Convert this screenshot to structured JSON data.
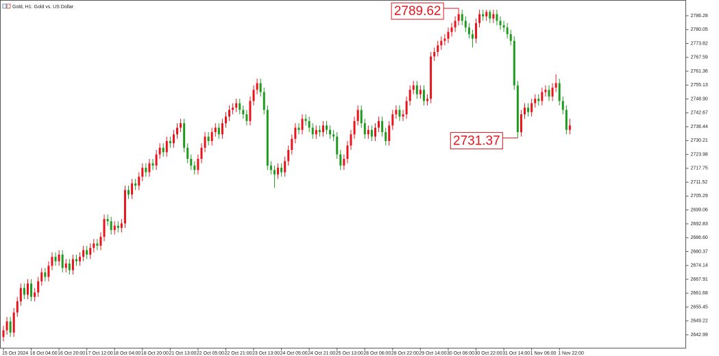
{
  "chart_data": {
    "type": "candlestick",
    "title": "Gold, H1:  Gold vs. US Dollar",
    "up_color": "#e8141c",
    "down_color": "#1f9a1f",
    "ylim": [
      2637.15,
      2793.35
    ],
    "yticks": [
      2642.99,
      2649.22,
      2655.45,
      2661.68,
      2667.91,
      2674.14,
      2680.37,
      {
        "value": 2686.6,
        "label": "2686.60"
      },
      2692.83,
      2699.06,
      2705.29,
      2711.52,
      2717.75,
      2723.98,
      2730.21,
      2736.44,
      2742.67,
      {
        "value": 2748.9,
        "label": "2748.90"
      },
      2755.13,
      2761.36,
      2767.59,
      2773.82,
      2780.05,
      2786.28
    ],
    "xticks": [
      {
        "value": 0,
        "label": "15 Oct 2024"
      },
      {
        "value": 8,
        "label": "16 Oct 04:00"
      },
      {
        "value": 16,
        "label": "16 Oct 20:00"
      },
      {
        "value": 24,
        "label": "17 Oct 12:00"
      },
      {
        "value": 32,
        "label": "18 Oct 04:00"
      },
      {
        "value": 40,
        "label": "18 Oct 20:00"
      },
      {
        "value": 48,
        "label": "21 Oct 13:00"
      },
      {
        "value": 56,
        "label": "22 Oct 05:00"
      },
      {
        "value": 64,
        "label": "22 Oct 21:00"
      },
      {
        "value": 72,
        "label": "23 Oct 13:00"
      },
      {
        "value": 80,
        "label": "24 Oct 05:00"
      },
      {
        "value": 88,
        "label": "24 Oct 21:00"
      },
      {
        "value": 96,
        "label": "25 Oct 13:00"
      },
      {
        "value": 104,
        "label": "28 Oct 06:00"
      },
      {
        "value": 112,
        "label": "28 Oct 22:00"
      },
      {
        "value": 120,
        "label": "29 Oct 14:00"
      },
      {
        "value": 128,
        "label": "30 Oct 06:00"
      },
      {
        "value": 136,
        "label": "30 Oct 22:00"
      },
      {
        "value": 144,
        "label": "31 Oct 14:00"
      },
      {
        "value": 152,
        "label": "1 Nov 06:00"
      },
      {
        "value": 160,
        "label": "1 Nov 22:00"
      }
    ],
    "open": [
      2642,
      2645,
      2649,
      2644,
      2653,
      2658,
      2664,
      2661,
      2666,
      2660,
      2662,
      2667,
      2671,
      2669,
      2674,
      2678,
      2676,
      2679,
      2673,
      2675,
      2672,
      2677,
      2676,
      2678,
      2681,
      2679,
      2682,
      2684,
      2683,
      2687,
      2695,
      2694,
      2690,
      2692,
      2691,
      2693,
      2708,
      2706,
      2711,
      2710,
      2714,
      2718,
      2716,
      2720,
      2719,
      2724,
      2727,
      2725,
      2730,
      2729,
      2733,
      2736,
      2738,
      2727,
      2722,
      2719,
      2717,
      2722,
      2727,
      2732,
      2730,
      2734,
      2736,
      2733,
      2738,
      2741,
      2744,
      2745,
      2747,
      2744,
      2742,
      2739,
      2748,
      2753,
      2756,
      2752,
      2744,
      2719,
      2717,
      2715,
      2718,
      2716,
      2721,
      2726,
      2731,
      2736,
      2735,
      2740,
      2739,
      2736,
      2733,
      2735,
      2734,
      2737,
      2735,
      2733,
      2732,
      2724,
      2719,
      2722,
      2728,
      2733,
      2739,
      2744,
      2738,
      2733,
      2735,
      2732,
      2736,
      2739,
      2734,
      2730,
      2737,
      2742,
      2744,
      2741,
      2742,
      2748,
      2753,
      2755,
      2751,
      2753,
      2748,
      2749,
      2768,
      2770,
      2773,
      2775,
      2776,
      2779,
      2781,
      2784,
      2787,
      2784,
      2781,
      2778,
      2776,
      2783,
      2787,
      2786,
      2788,
      2785,
      2787,
      2784,
      2782,
      2781,
      2778,
      2775,
      2755,
      2734,
      2742,
      2745,
      2743,
      2747,
      2749,
      2748,
      2752,
      2753,
      2750,
      2754,
      2756,
      2748,
      2744,
      2735
    ],
    "high": [
      2647,
      2651,
      2651,
      2655,
      2660,
      2666,
      2666,
      2668,
      2668,
      2664,
      2669,
      2673,
      2673,
      2676,
      2680,
      2680,
      2681,
      2681,
      2677,
      2677,
      2679,
      2679,
      2680,
      2683,
      2683,
      2684,
      2686,
      2686,
      2689,
      2697,
      2697,
      2696,
      2694,
      2694,
      2695,
      2710,
      2710,
      2713,
      2713,
      2716,
      2720,
      2720,
      2722,
      2722,
      2726,
      2729,
      2729,
      2732,
      2732,
      2735,
      2738,
      2740,
      2740,
      2729,
      2724,
      2721,
      2724,
      2729,
      2734,
      2734,
      2736,
      2738,
      2738,
      2740,
      2743,
      2746,
      2747,
      2749,
      2749,
      2746,
      2744,
      2750,
      2755,
      2758,
      2758,
      2754,
      2746,
      2721,
      2719,
      2720,
      2720,
      2723,
      2728,
      2733,
      2738,
      2738,
      2742,
      2742,
      2741,
      2738,
      2737,
      2737,
      2739,
      2739,
      2737,
      2735,
      2734,
      2726,
      2724,
      2730,
      2735,
      2741,
      2746,
      2746,
      2740,
      2737,
      2737,
      2738,
      2741,
      2741,
      2736,
      2739,
      2744,
      2746,
      2746,
      2744,
      2750,
      2755,
      2757,
      2757,
      2755,
      2755,
      2751,
      2770,
      2772,
      2775,
      2777,
      2778,
      2781,
      2783,
      2786,
      2789.62,
      2789,
      2786,
      2783,
      2780,
      2785,
      2789,
      2789,
      2789,
      2789,
      2789,
      2789,
      2786,
      2784,
      2783,
      2780,
      2777,
      2757,
      2744,
      2747,
      2747,
      2749,
      2751,
      2751,
      2754,
      2755,
      2755,
      2756,
      2760,
      2758,
      2750,
      2746,
      2740
    ],
    "low": [
      2640,
      2643,
      2642,
      2642,
      2651,
      2656,
      2659,
      2659,
      2658,
      2658,
      2660,
      2665,
      2667,
      2667,
      2672,
      2674,
      2674,
      2671,
      2671,
      2670,
      2670,
      2674,
      2674,
      2676,
      2677,
      2677,
      2680,
      2681,
      2681,
      2685,
      2692,
      2688,
      2688,
      2689,
      2689,
      2691,
      2704,
      2704,
      2708,
      2708,
      2712,
      2714,
      2714,
      2717,
      2717,
      2722,
      2723,
      2723,
      2727,
      2727,
      2731,
      2734,
      2725,
      2720,
      2717,
      2715,
      2715,
      2720,
      2725,
      2728,
      2728,
      2732,
      2731,
      2731,
      2736,
      2739,
      2742,
      2743,
      2742,
      2740,
      2737,
      2737,
      2746,
      2751,
      2750,
      2742,
      2717,
      2715,
      2709,
      2713,
      2714,
      2714,
      2719,
      2724,
      2729,
      2733,
      2733,
      2737,
      2734,
      2731,
      2731,
      2732,
      2732,
      2733,
      2731,
      2730,
      2722,
      2717,
      2717,
      2720,
      2726,
      2731,
      2737,
      2736,
      2731,
      2731,
      2730,
      2730,
      2734,
      2732,
      2728,
      2728,
      2735,
      2740,
      2739,
      2739,
      2740,
      2746,
      2751,
      2749,
      2749,
      2746,
      2746,
      2747,
      2766,
      2768,
      2771,
      2773,
      2774,
      2777,
      2779,
      2782,
      2782,
      2779,
      2776,
      2772,
      2774,
      2781,
      2784,
      2784,
      2783,
      2783,
      2782,
      2780,
      2779,
      2776,
      2773,
      2753,
      2731.37,
      2732,
      2740,
      2741,
      2741,
      2745,
      2746,
      2746,
      2750,
      2748,
      2748,
      2752,
      2746,
      2742,
      2733,
      2733
    ],
    "close": [
      2645,
      2649,
      2644,
      2653,
      2658,
      2664,
      2661,
      2666,
      2660,
      2662,
      2667,
      2671,
      2669,
      2674,
      2678,
      2676,
      2679,
      2673,
      2675,
      2672,
      2677,
      2676,
      2678,
      2681,
      2679,
      2682,
      2684,
      2683,
      2687,
      2695,
      2694,
      2690,
      2692,
      2691,
      2693,
      2708,
      2706,
      2711,
      2710,
      2714,
      2718,
      2716,
      2720,
      2719,
      2724,
      2727,
      2725,
      2730,
      2729,
      2733,
      2736,
      2738,
      2727,
      2722,
      2719,
      2717,
      2722,
      2727,
      2732,
      2730,
      2734,
      2736,
      2733,
      2738,
      2741,
      2744,
      2745,
      2747,
      2744,
      2742,
      2739,
      2748,
      2753,
      2756,
      2752,
      2744,
      2719,
      2717,
      2715,
      2718,
      2716,
      2721,
      2726,
      2731,
      2736,
      2735,
      2740,
      2739,
      2736,
      2733,
      2735,
      2734,
      2737,
      2735,
      2733,
      2732,
      2724,
      2719,
      2722,
      2728,
      2733,
      2739,
      2744,
      2738,
      2733,
      2735,
      2732,
      2736,
      2739,
      2734,
      2730,
      2737,
      2742,
      2744,
      2741,
      2742,
      2748,
      2753,
      2755,
      2751,
      2753,
      2748,
      2749,
      2768,
      2770,
      2773,
      2775,
      2776,
      2779,
      2781,
      2784,
      2787,
      2784,
      2781,
      2778,
      2776,
      2783,
      2787,
      2786,
      2788,
      2785,
      2787,
      2784,
      2782,
      2781,
      2778,
      2775,
      2755,
      2734,
      2742,
      2745,
      2743,
      2747,
      2749,
      2748,
      2752,
      2753,
      2750,
      2754,
      2756,
      2748,
      2744,
      2735,
      2737
    ],
    "annotations": [
      {
        "value": 2789.62,
        "kind": "high"
      },
      {
        "value": 2731.37,
        "kind": "low"
      }
    ]
  }
}
